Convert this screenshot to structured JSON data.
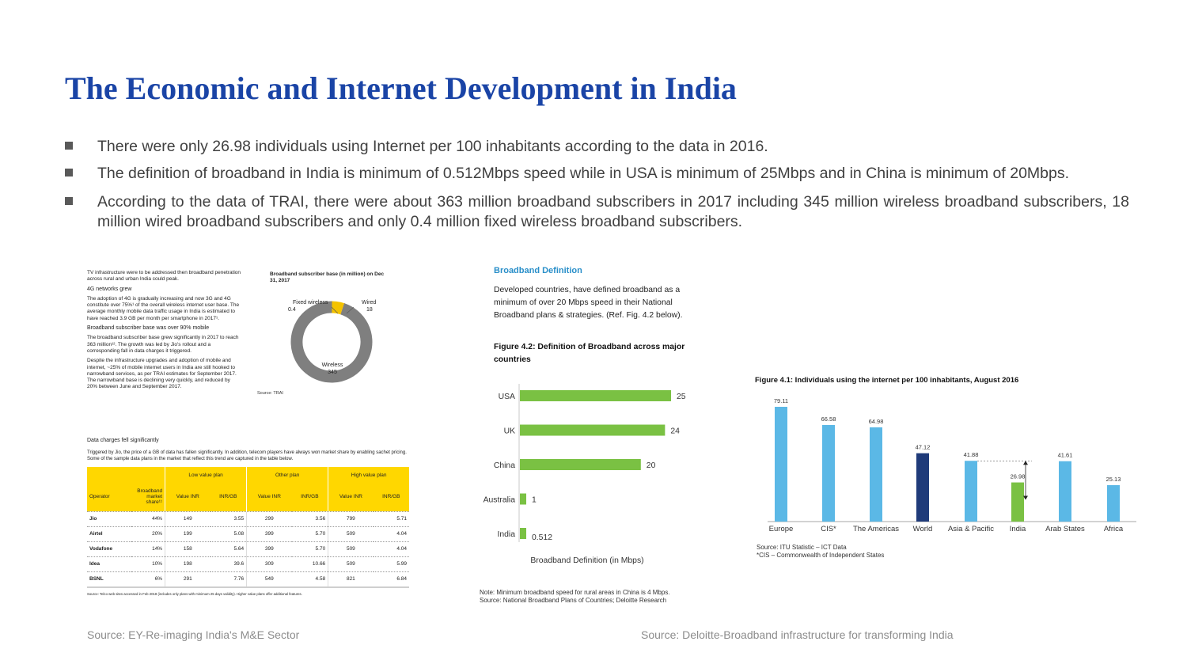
{
  "title": "The Economic and Internet Development in India",
  "bullets": [
    "There were only 26.98 individuals using Internet per 100 inhabitants according to the data in 2016.",
    "The definition of broadband in India is minimum of 0.512Mbps speed while in USA is minimum of 25Mbps and in China is minimum of 20Mbps.",
    "According to the data of TRAI, there were about 363 million  broadband subscribers in 2017 including 345 million wireless broadband subscribers, 18 million wired broadband subscribers and only 0.4 million fixed wireless broadband subscribers."
  ],
  "ey": {
    "p1": "TV infrastructure were to be addressed then broadband penetration across rural and urban India could peak.",
    "h1": "4G networks grew",
    "p2": "The adoption of 4G is gradually increasing and now 3G and 4G constitute over 75%¹ of the overall wireless internet user base. The average monthly mobile data traffic usage in India is estimated to have reached 3.9 GB per month per smartphone in 2017¹.",
    "h2": "Broadband subscriber base was over 90% mobile",
    "p3": "The broadband subscriber base grew significantly in 2017 to reach 363 million¹². The growth was led by Jio's rollout and a corresponding fall in data charges it triggered.",
    "p4": "Despite the infrastructure upgrades and adoption of mobile and internet, ~25% of mobile internet users in India are still hooked to narrowband services, as per TRAI estimates for September 2017. The narrowband base is declining very quickly, and reduced by 20% between June and September 2017.",
    "h3": "Data charges fell significantly",
    "p5": "Triggered by Jio, the price of a GB of data has fallen significantly. In addition, telecom players have always won market share by enabling sachet pricing. Some of the sample data plans in the market that reflect this trend are captured in the table below.",
    "table_headers_top": [
      "Low value plan",
      "Other plan",
      "High value plan"
    ],
    "table_headers": [
      "Operator",
      "Broadband market share¹¹",
      "Value INR",
      "INR/GB",
      "Value INR",
      "INR/GB",
      "Value INR",
      "INR/GB"
    ],
    "table_rows": [
      [
        "Jio",
        "44%",
        "149",
        "3.55",
        "299",
        "3.56",
        "799",
        "5.71"
      ],
      [
        "Airtel",
        "20%",
        "199",
        "5.08",
        "399",
        "5.70",
        "509",
        "4.04"
      ],
      [
        "Vodafone",
        "14%",
        "158",
        "5.64",
        "399",
        "5.70",
        "509",
        "4.04"
      ],
      [
        "Idea",
        "10%",
        "198",
        "39.6",
        "309",
        "10.66",
        "509",
        "5.99"
      ],
      [
        "BSNL",
        "6%",
        "291",
        "7.76",
        "549",
        "4.58",
        "821",
        "6.84"
      ]
    ],
    "table_source": "Source: Telco web sites accessed in Feb 2018 (includes only plans with minimum 25 days validity). Higher value plans offer additional features.",
    "source_label": "Source: EY-Re-imaging India's M&E Sector"
  },
  "chart_data": [
    {
      "type": "pie",
      "title": "Broadband subscriber base (in million) on Dec 31, 2017",
      "labels": [
        "Fixed wireless",
        "Wired",
        "Wireless"
      ],
      "values": [
        0.4,
        18,
        345
      ],
      "value_labels": [
        "0.4",
        "18",
        "345"
      ],
      "colors": [
        "#f0a500",
        "#f4c300",
        "#7f7f7f"
      ],
      "source": "Source: TRAI"
    },
    {
      "type": "bar",
      "orientation": "horizontal",
      "section_title": "Broadband Definition",
      "intro": "Developed countries, have defined broadband as a minimum of over 20 Mbps speed in their National Broadband plans & strategies. (Ref. Fig. 4.2 below).",
      "title": "Figure 4.2: Definition of Broadband across major countries",
      "categories": [
        "USA",
        "UK",
        "China",
        "Australia",
        "India"
      ],
      "values": [
        25,
        24,
        20,
        1,
        0.512
      ],
      "value_labels": [
        "25",
        "24",
        "20",
        "1",
        "0.512"
      ],
      "xlabel": "Broadband Definition (in Mbps)",
      "color": "#7ac143",
      "notes": [
        "Note: Minimum broadband speed for rural areas in China is 4 Mbps.",
        "Source: National Broadband Plans of Countries; Deloitte Research"
      ]
    },
    {
      "type": "bar",
      "title": "Figure 4.1: Individuals using the internet per 100 inhabitants, August 2016",
      "categories": [
        "Europe",
        "CIS*",
        "The Americas",
        "World",
        "Asia & Pacific",
        "India",
        "Arab States",
        "Africa"
      ],
      "values": [
        79.11,
        66.58,
        64.98,
        47.12,
        41.88,
        26.98,
        41.61,
        25.13
      ],
      "value_labels": [
        "79.11",
        "66.58",
        "64.98",
        "47.12",
        "41.88",
        "26.98",
        "41.61",
        "25.13"
      ],
      "colors": [
        "#5bb8e6",
        "#5bb8e6",
        "#5bb8e6",
        "#1f3b7a",
        "#5bb8e6",
        "#7ac143",
        "#5bb8e6",
        "#5bb8e6"
      ],
      "notes": [
        "Source: ITU Statistic – ICT Data",
        "*CIS – Commonwealth of Independent States"
      ]
    }
  ],
  "deloitte_source_label": "Source: Deloitte-Broadband infrastructure for transforming India"
}
